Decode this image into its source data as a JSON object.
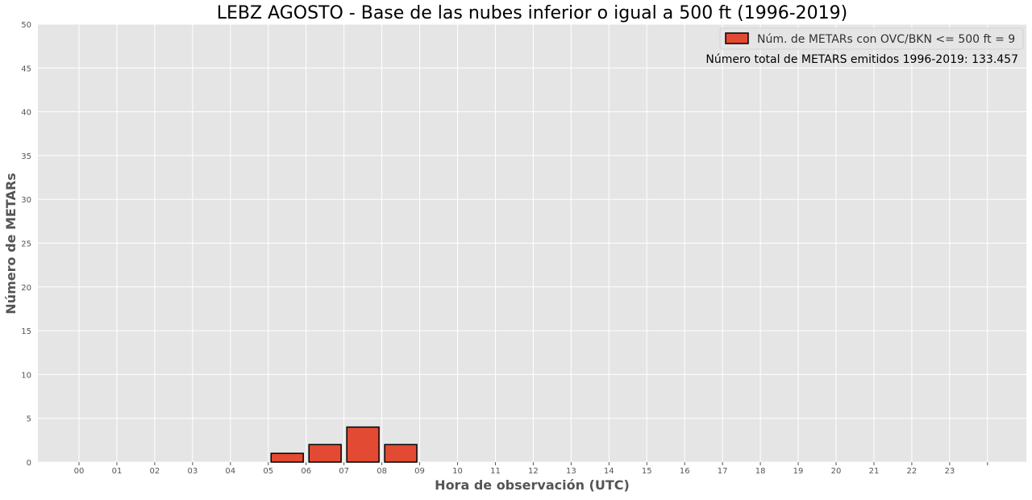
{
  "chart_data": {
    "type": "bar",
    "title": "LEBZ AGOSTO - Base de las nubes inferior o igual a 500 ft (1996-2019)",
    "xlabel": "Hora de observación (UTC)",
    "ylabel": "Número de METARs",
    "categories": [
      "00",
      "01",
      "02",
      "03",
      "04",
      "05",
      "06",
      "07",
      "08",
      "09",
      "10",
      "11",
      "12",
      "13",
      "14",
      "15",
      "16",
      "17",
      "18",
      "19",
      "20",
      "21",
      "22",
      "23"
    ],
    "series": [
      {
        "name": "Núm. de METARs con OVC/BKN <= 500 ft = 9",
        "values": [
          0,
          0,
          0,
          0,
          0,
          1,
          2,
          4,
          2,
          0,
          0,
          0,
          0,
          0,
          0,
          0,
          0,
          0,
          0,
          0,
          0,
          0,
          0,
          0
        ]
      }
    ],
    "yticks": [
      0,
      5,
      10,
      15,
      20,
      25,
      30,
      35,
      40,
      45,
      50
    ],
    "ylim": [
      0,
      50
    ],
    "grid": true,
    "legend_position": "top-right",
    "annotation": "Número total de METARS emitidos 1996-2019:  133.457",
    "colors": {
      "bar_fill": "#e24a33",
      "bar_edge": "#000000",
      "plot_background": "#e5e5e5",
      "grid": "#ffffff",
      "text": "#555555",
      "title": "#000000"
    }
  }
}
